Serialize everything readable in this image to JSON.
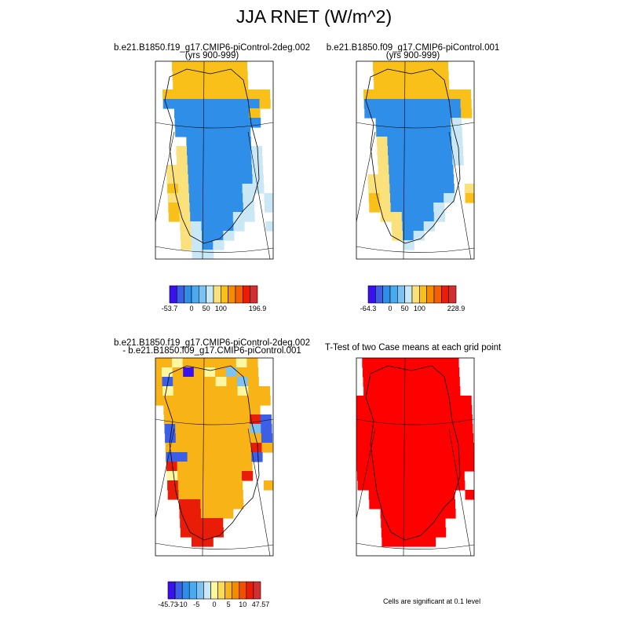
{
  "title": "JJA RNET (W/m^2)",
  "colors": {
    "palette1": [
      "#3b10ee",
      "#3c5fe6",
      "#2f8fe8",
      "#4aaaf0",
      "#7dc2f1",
      "#c9e7f4",
      "#fbe17b",
      "#f8c018",
      "#f78a03",
      "#f46005",
      "#ee1c06",
      "#d42f30"
    ],
    "palette3": [
      "#3b10ee",
      "#3c5fe6",
      "#2f8fe8",
      "#4aaaf0",
      "#7dc2f1",
      "#c9e7f4",
      "#fef6a0",
      "#fbd95b",
      "#f8b316",
      "#f78a03",
      "#f25000",
      "#e91c07",
      "#d42f30"
    ],
    "significant": "#ff0000"
  },
  "chart_data": [
    {
      "type": "heatmap",
      "title": "b.e21.B1850.f19_g17.CMIP6-piControl-2deg.002",
      "subtitle": "(yrs 900-999)",
      "colorbar": {
        "labels": [
          "-53.7",
          "0",
          "50",
          "100",
          "196.9"
        ],
        "min": -53.7,
        "max": 196.9
      },
      "rows": [
        "..ooooooo..",
        "..ooooooo..",
        "..ooooooo..",
        ".oooooooooo",
        ".bbbbbbbbbo",
        "..bbbbbbbo.",
        "..bbbbbbbb.",
        "..bbbbbbb..",
        "...bbbbbb..",
        "..ybbbbbbl.",
        "..ybbbbbbl.",
        ".yybbbbbbl.",
        ".yybbbbbbl.",
        ".oybbbbbll.",
        ".yybbbbbl.l",
        ".oybbbbbl.l",
        ".oybbbbll..",
        "..ylbbbl..l",
        "..ylbbl....",
        "..ylbl.....",
        "...ll......"
      ]
    },
    {
      "type": "heatmap",
      "title": "b.e21.B1850.f09_g17.CMIP6-piControl.001",
      "subtitle": "(yrs 900-999)",
      "colorbar": {
        "labels": [
          "-64.3",
          "0",
          "50",
          "100",
          "228.9"
        ],
        "min": -64.3,
        "max": 228.9
      },
      "rows": [
        "..ooooooo..",
        "..ooooooo..",
        "..ooooooo..",
        ".oooooooooo",
        ".bbbbbbbbbo",
        ".bbbbbbbbbo",
        "..bbbbbbbl.",
        "..bbbbbbbl.",
        "..ybbbbbbl.",
        "..ybbbbbbl.",
        "..ybbbbbbl.",
        "..ybbbbbb..",
        ".yybbbbbb..",
        ".yybbbbbb.y",
        ".oybbbbbl.o",
        ".oybbbbl...",
        "..yybbbl...",
        "...ybbl....",
        "...ybl.....",
        "....l......",
        "..........."
      ]
    },
    {
      "type": "heatmap",
      "title": "b.e21.B1850.f19_g17.CMIP6-piControl-2deg.002",
      "subtitle": "- b.e21.B1850.f09_g17.CMIP6-piControl.001",
      "colorbar": {
        "labels": [
          "-45.73",
          "-10",
          "-5",
          "0",
          "5",
          "10",
          "47.57"
        ],
        "min": -45.73,
        "max": 47.57
      },
      "rows": [
        "ooyoooooyo.",
        "oyouoyoloo.",
        "obooooyolo.",
        "oyooooooyoo",
        "ooooooooooo",
        ".ooooooooo.",
        ".oooooooorb",
        ".booooooolb",
        ".boooooooob",
        ".ooooooooro",
        ".bboooooob.",
        ".rooooooo..",
        ".yoooooor..",
        ".roooooo..o",
        ".roooooo...",
        "..rroooo...",
        "..rrooo....",
        "..rrrr.....",
        "..rrrr.....",
        "...rr......",
        "..........."
      ]
    },
    {
      "type": "heatmap",
      "title": "T-Test of two Case means at each grid point",
      "subtitle": "",
      "annotation": "Cells are significant at 0.1 level",
      "rows": [
        ".sssssssss.",
        ".sssssssss.",
        ".sssssssss.",
        ".sssssssss.",
        "sssssssssss",
        "sssssssssss",
        "sssssssssss",
        "sssssssssss",
        "sssssssssss",
        "sssssssssss",
        "sssssssssss",
        "sssssssssss",
        "ssssssssss.",
        "ssssssssss.",
        ".ssssssss.s",
        ".ssssssss..",
        "..sssssss..",
        "..ssssss...",
        "..ssssss...",
        "..sssss....",
        "..........."
      ]
    }
  ]
}
